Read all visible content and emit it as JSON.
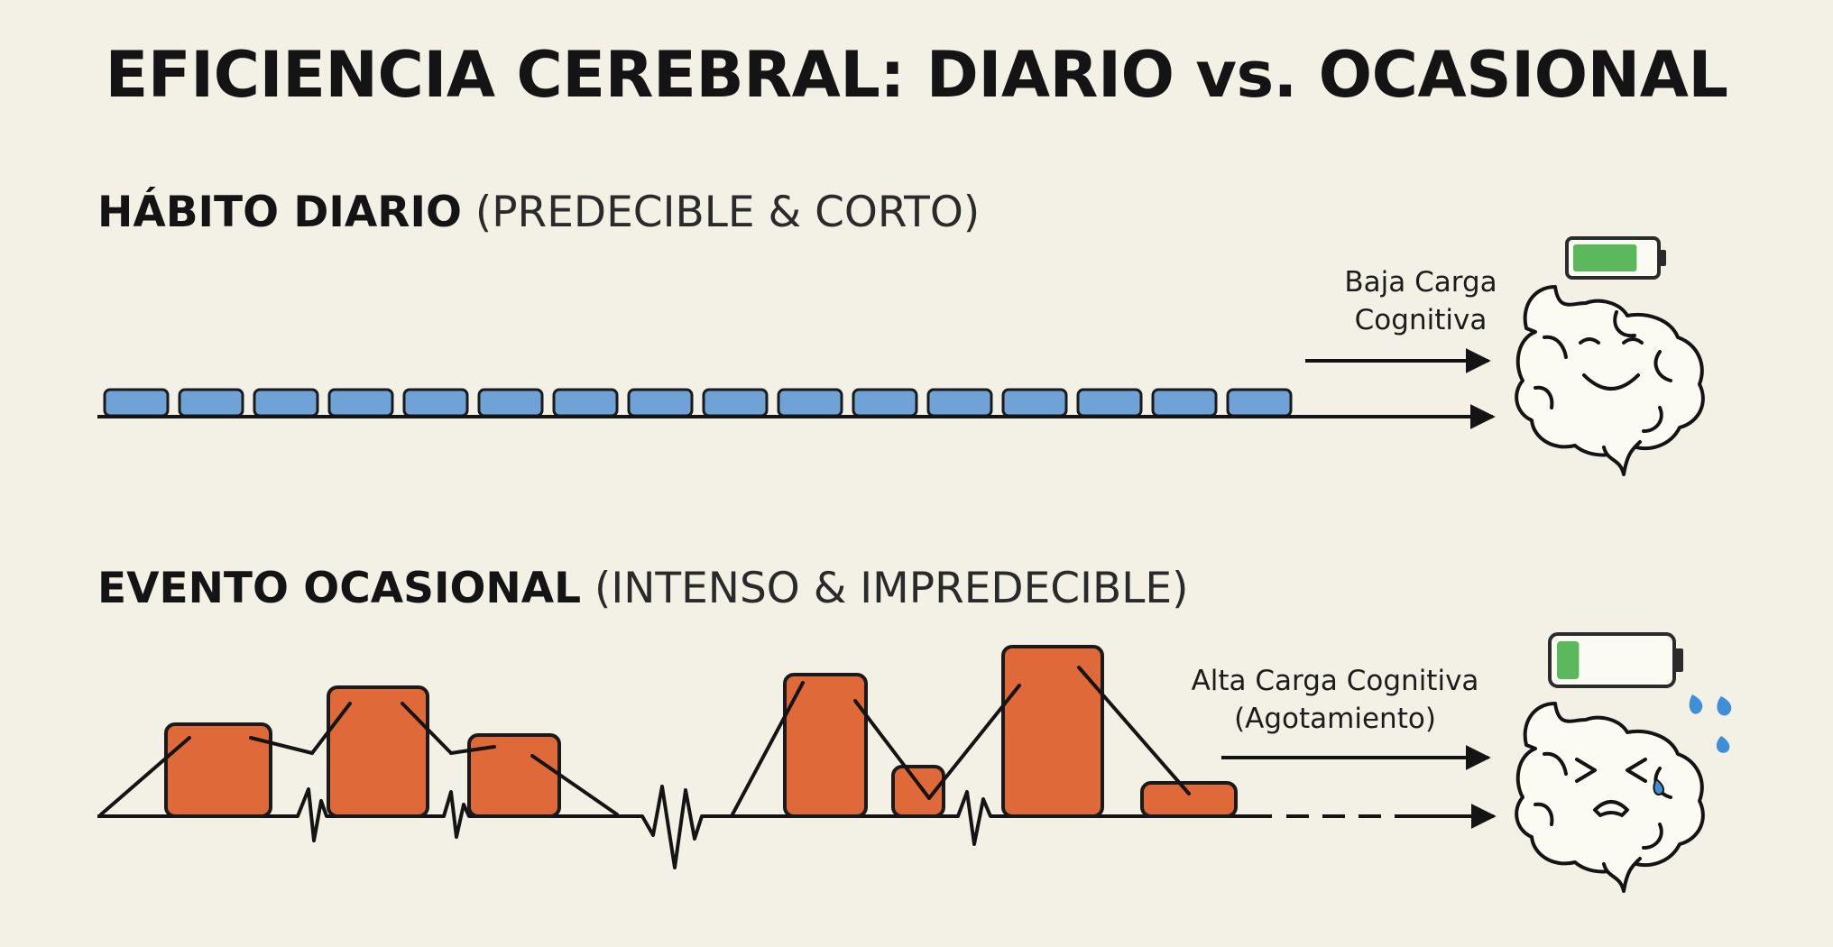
{
  "title": "EFICIENCIA CEREBRAL: DIARIO vs. OCASIONAL",
  "daily": {
    "heading_bold": "HÁBITO DIARIO",
    "heading_light": "(PREDECIBLE & CORTO)",
    "label_line1": "Baja Carga",
    "label_line2": "Cognitiva",
    "block_count": 16,
    "block_color": "#6fa3d8",
    "battery_level": 0.8,
    "battery_color": "#5cb85c",
    "brain_mood": "happy"
  },
  "occasional": {
    "heading_bold": "EVENTO OCASIONAL",
    "heading_light": "(INTENSO & IMPREDECIBLE)",
    "label_line1": "Alta Carga Cognitiva",
    "label_line2": "(Agotamiento)",
    "block_color": "#e0693a",
    "battery_level": 0.2,
    "battery_color": "#5cb85c",
    "brain_mood": "exhausted",
    "sweat_color": "#3f8fd6"
  },
  "icons": [
    "arrow-right-icon",
    "battery-icon",
    "brain-icon",
    "sweat-drops-icon"
  ]
}
